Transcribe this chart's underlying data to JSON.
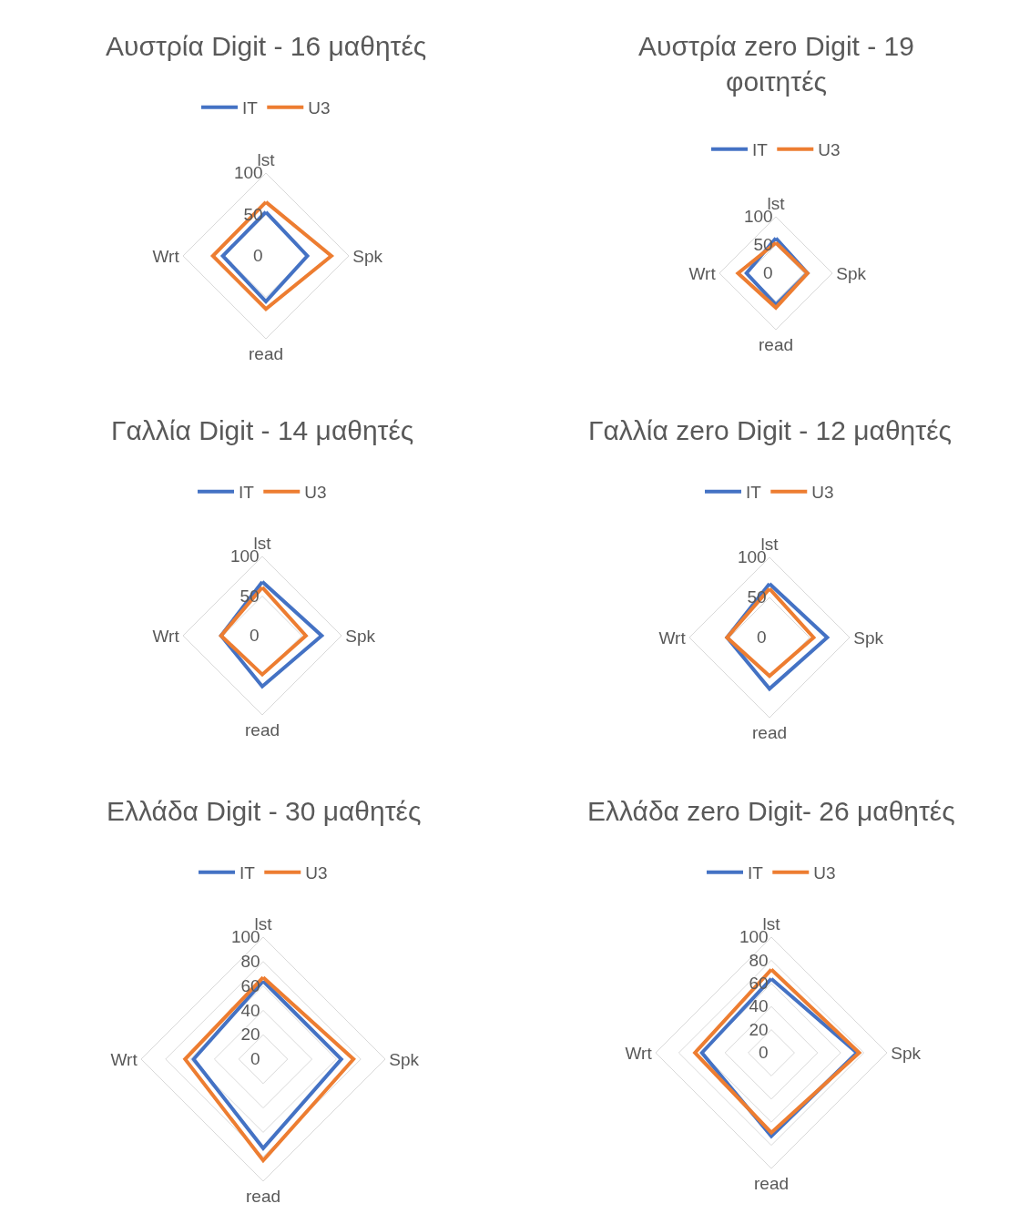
{
  "chart_data": [
    {
      "type": "radar",
      "title": "Αυστρία Digit - 16 μαθητές",
      "categories": [
        "lst",
        "Spk",
        "read",
        "Wrt"
      ],
      "ylim": [
        0,
        100
      ],
      "yticks": [
        0,
        50,
        100
      ],
      "grid": true,
      "legend": "top",
      "line_style": "solid",
      "marker": "none",
      "series": [
        {
          "name": "IT",
          "color": "#4472c4",
          "values": [
            53,
            50,
            55,
            52
          ]
        },
        {
          "name": "U3",
          "color": "#ed7d31",
          "values": [
            65,
            79,
            64,
            64
          ]
        }
      ]
    },
    {
      "type": "radar",
      "title": "Αυστρία zero Digit - 19 φοιτητές",
      "categories": [
        "lst",
        "Spk",
        "read",
        "Wrt"
      ],
      "ylim": [
        0,
        100
      ],
      "yticks": [
        0,
        50,
        100
      ],
      "grid": true,
      "legend": "top",
      "line_style": "solid",
      "marker": "none",
      "series": [
        {
          "name": "IT",
          "color": "#4472c4",
          "values": [
            62,
            56,
            56,
            52
          ]
        },
        {
          "name": "U3",
          "color": "#ed7d31",
          "values": [
            54,
            56,
            61,
            67
          ]
        }
      ]
    },
    {
      "type": "radar",
      "title": "Γαλλία Digit - 14 μαθητές",
      "categories": [
        "lst",
        "Spk",
        "read",
        "Wrt"
      ],
      "ylim": [
        0,
        100
      ],
      "yticks": [
        0,
        50,
        100
      ],
      "grid": true,
      "legend": "top",
      "line_style": "solid",
      "marker": "none",
      "series": [
        {
          "name": "IT",
          "color": "#4472c4",
          "values": [
            68,
            75,
            64,
            52
          ]
        },
        {
          "name": "U3",
          "color": "#ed7d31",
          "values": [
            61,
            55,
            49,
            52
          ]
        }
      ]
    },
    {
      "type": "radar",
      "title": "Γαλλία zero Digit - 12 μαθητές",
      "categories": [
        "lst",
        "Spk",
        "read",
        "Wrt"
      ],
      "ylim": [
        0,
        100
      ],
      "yticks": [
        0,
        50,
        100
      ],
      "grid": true,
      "legend": "top",
      "line_style": "solid",
      "marker": "none",
      "series": [
        {
          "name": "IT",
          "color": "#4472c4",
          "values": [
            67,
            72,
            64,
            53
          ]
        },
        {
          "name": "U3",
          "color": "#ed7d31",
          "values": [
            61,
            55,
            48,
            53
          ]
        }
      ]
    },
    {
      "type": "radar",
      "title": "Ελλάδα Digit - 30 μαθητές",
      "categories": [
        "lst",
        "Spk",
        "read",
        "Wrt"
      ],
      "ylim": [
        0,
        100
      ],
      "yticks": [
        0,
        20,
        40,
        60,
        80,
        100
      ],
      "grid": true,
      "legend": "top",
      "line_style": "solid",
      "marker": "none",
      "series": [
        {
          "name": "IT",
          "color": "#4472c4",
          "values": [
            64,
            64,
            73,
            57
          ]
        },
        {
          "name": "U3",
          "color": "#ed7d31",
          "values": [
            67,
            74,
            83,
            64
          ]
        }
      ]
    },
    {
      "type": "radar",
      "title": "Ελλάδα zero Digit- 26 μαθητές",
      "categories": [
        "lst",
        "Spk",
        "read",
        "Wrt"
      ],
      "ylim": [
        0,
        100
      ],
      "yticks": [
        0,
        20,
        40,
        60,
        80,
        100
      ],
      "grid": true,
      "legend": "top",
      "line_style": "solid",
      "marker": "none",
      "series": [
        {
          "name": "IT",
          "color": "#4472c4",
          "values": [
            64,
            74,
            72,
            60
          ]
        },
        {
          "name": "U3",
          "color": "#ed7d31",
          "values": [
            72,
            76,
            69,
            66
          ]
        }
      ]
    }
  ]
}
